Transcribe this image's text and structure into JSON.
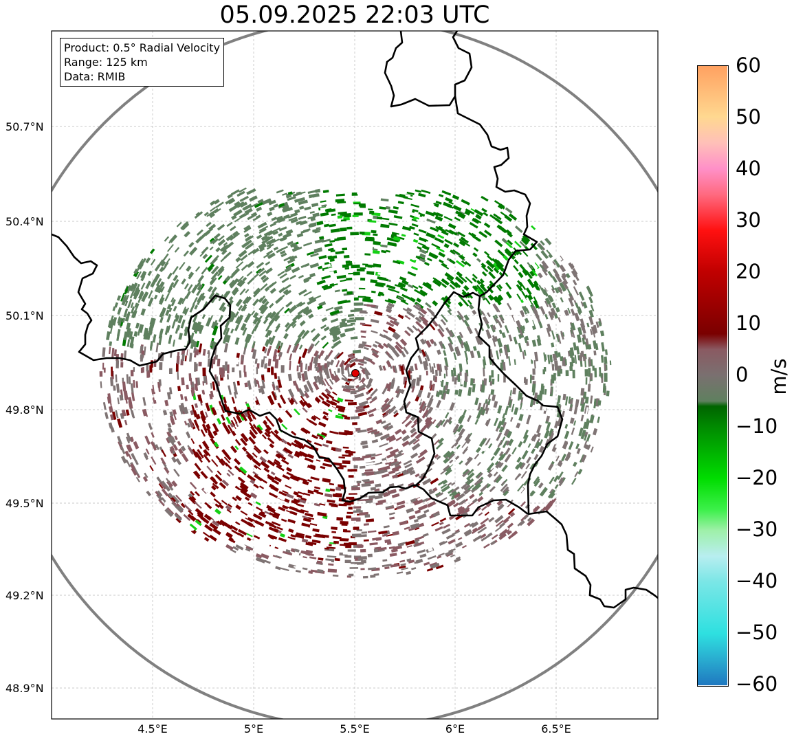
{
  "title": "05.09.2025 22:03 UTC",
  "info_box": {
    "product": "Product: 0.5° Radial Velocity",
    "range": "Range: 125 km",
    "data": "Data: RMIB"
  },
  "map": {
    "lon_range": [
      4.0,
      7.0
    ],
    "lat_range": [
      48.8,
      50.99
    ],
    "radar_site": {
      "lon": 5.505,
      "lat": 49.914,
      "color": "#e00000"
    },
    "range_ring_km": 125,
    "ring_color": "#808080",
    "border_color": "#000000",
    "grid": true,
    "x_ticks": [
      "4.5°E",
      "5°E",
      "5.5°E",
      "6°E",
      "6.5°E"
    ],
    "y_ticks": [
      "50.7°N",
      "50.4°N",
      "50.1°N",
      "49.8°N",
      "49.5°N",
      "49.2°N",
      "48.9°N"
    ]
  },
  "colorbar": {
    "label": "m/s",
    "min": -60,
    "max": 60,
    "tick_labels": [
      "60",
      "50",
      "40",
      "30",
      "20",
      "10",
      "0",
      "−10",
      "−20",
      "−30",
      "−40",
      "−50",
      "−60"
    ],
    "stops": [
      {
        "v": -60,
        "c": "#1f78c0"
      },
      {
        "v": -55,
        "c": "#29acd0"
      },
      {
        "v": -50,
        "c": "#2ee0e0"
      },
      {
        "v": -40,
        "c": "#7ae6e6"
      },
      {
        "v": -35,
        "c": "#b8eef0"
      },
      {
        "v": -30,
        "c": "#9ef0a8"
      },
      {
        "v": -26,
        "c": "#3cf04a"
      },
      {
        "v": -20,
        "c": "#00dd00"
      },
      {
        "v": -10,
        "c": "#008a00"
      },
      {
        "v": -6,
        "c": "#006400"
      },
      {
        "v": -5,
        "c": "#5f805f"
      },
      {
        "v": 0,
        "c": "#7a7070"
      },
      {
        "v": 5,
        "c": "#8a5a62"
      },
      {
        "v": 8,
        "c": "#7a0000"
      },
      {
        "v": 20,
        "c": "#c00000"
      },
      {
        "v": 28,
        "c": "#ff1010"
      },
      {
        "v": 35,
        "c": "#ff6a80"
      },
      {
        "v": 40,
        "c": "#ff90c8"
      },
      {
        "v": 45,
        "c": "#ffc0b8"
      },
      {
        "v": 50,
        "c": "#ffd890"
      },
      {
        "v": 60,
        "c": "#ffa060"
      }
    ]
  }
}
